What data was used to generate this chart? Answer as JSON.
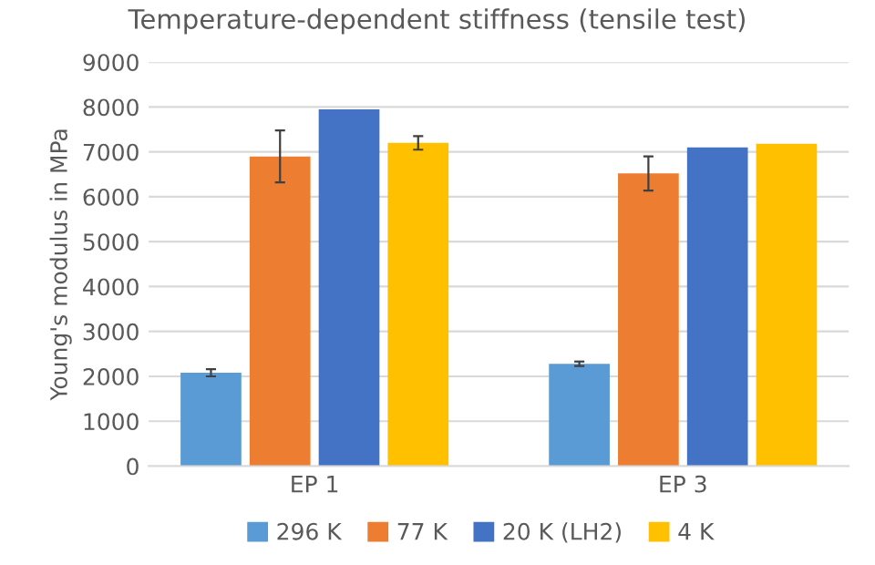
{
  "chart_data": {
    "type": "bar",
    "title": "Temperature-dependent stiffness (tensile test)",
    "ylabel": "Young's modulus in MPa",
    "categories": [
      "EP 1",
      "EP 3"
    ],
    "series": [
      {
        "name": "296 K",
        "color": "#5b9bd5",
        "values": [
          2080,
          2280
        ],
        "errors": [
          80,
          50
        ]
      },
      {
        "name": "77 K",
        "color": "#ed7d31",
        "values": [
          6900,
          6520
        ],
        "errors": [
          580,
          380
        ]
      },
      {
        "name": "20 K (LH2)",
        "color": "#4472c4",
        "values": [
          7950,
          7100
        ],
        "errors": [
          null,
          null
        ]
      },
      {
        "name": "4 K",
        "color": "#ffc000",
        "values": [
          7200,
          7180
        ],
        "errors": [
          150,
          null
        ]
      }
    ],
    "ylim": [
      0,
      9000
    ],
    "yticks": [
      0,
      1000,
      2000,
      3000,
      4000,
      5000,
      6000,
      7000,
      8000,
      9000
    ],
    "grid": "y",
    "legend": "bottom"
  }
}
